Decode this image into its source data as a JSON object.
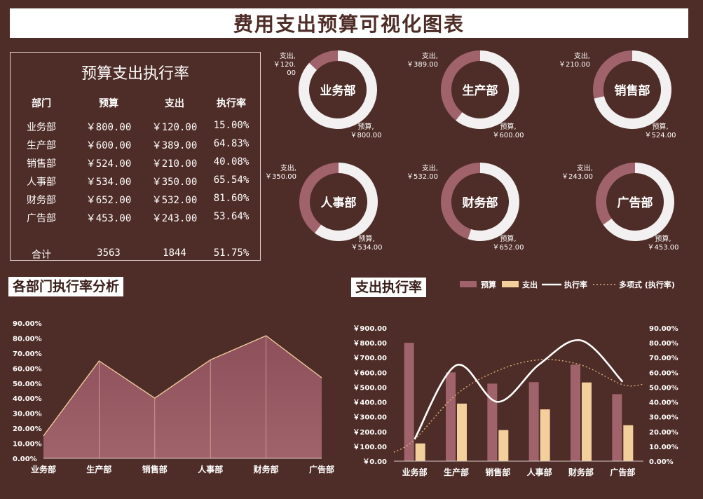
{
  "page_title": "费用支出预算可视化图表",
  "table": {
    "title": "预算支出执行率",
    "headers": [
      "部门",
      "预算",
      "支出",
      "执行率"
    ],
    "rows": [
      [
        "业务部",
        "￥800.00",
        "￥120.00",
        "15.00%"
      ],
      [
        "生产部",
        "￥600.00",
        "￥389.00",
        "64.83%"
      ],
      [
        "销售部",
        "￥524.00",
        "￥210.00",
        "40.08%"
      ],
      [
        "人事部",
        "￥534.00",
        "￥350.00",
        "65.54%"
      ],
      [
        "财务部",
        "￥652.00",
        "￥532.00",
        "81.60%"
      ],
      [
        "广告部",
        "￥453.00",
        "￥243.00",
        "53.64%"
      ]
    ],
    "total": [
      "合计",
      "3563",
      "1844",
      "51.75%"
    ]
  },
  "colors": {
    "background": "#4e2c27",
    "budget": "#a0636b",
    "spend": "#f3cf9c",
    "ring_rest": "#f2f0f1",
    "area_fill": "#a0636b",
    "area_line": "#f3cf9c"
  },
  "chart_data": [
    {
      "type": "pie",
      "variant": "donut",
      "charts": [
        {
          "center_label": "业务部",
          "slices": [
            {
              "name": "支出",
              "value": 120,
              "label": "支出,\n￥120.\n00"
            },
            {
              "name": "预算",
              "value": 800,
              "label": "预算,\n￥800.00"
            }
          ]
        },
        {
          "center_label": "生产部",
          "slices": [
            {
              "name": "支出",
              "value": 389,
              "label": "支出,\n￥389.00"
            },
            {
              "name": "预算",
              "value": 600,
              "label": "预算,\n￥600.00"
            }
          ]
        },
        {
          "center_label": "销售部",
          "slices": [
            {
              "name": "支出",
              "value": 210,
              "label": "支出,\n￥210.00"
            },
            {
              "name": "预算",
              "value": 524,
              "label": "预算,\n￥524.00"
            }
          ]
        },
        {
          "center_label": "人事部",
          "slices": [
            {
              "name": "支出",
              "value": 350,
              "label": "支出,\n￥350.00"
            },
            {
              "name": "预算",
              "value": 534,
              "label": "预算,\n￥534.00"
            }
          ]
        },
        {
          "center_label": "财务部",
          "slices": [
            {
              "name": "支出",
              "value": 532,
              "label": "支出,\n￥532.00"
            },
            {
              "name": "预算",
              "value": 652,
              "label": "预算,\n￥652.00"
            }
          ]
        },
        {
          "center_label": "广告部",
          "slices": [
            {
              "name": "支出",
              "value": 243,
              "label": "支出,\n￥243.00"
            },
            {
              "name": "预算",
              "value": 453,
              "label": "预算,\n￥453.00"
            }
          ]
        }
      ]
    },
    {
      "type": "area",
      "title": "各部门执行率分析",
      "categories": [
        "业务部",
        "生产部",
        "销售部",
        "人事部",
        "财务部",
        "广告部"
      ],
      "values": [
        15.0,
        64.83,
        40.08,
        65.54,
        81.6,
        53.64
      ],
      "ylim": [
        0,
        90
      ],
      "y_ticks": [
        "0.00%",
        "10.00%",
        "20.00%",
        "30.00%",
        "40.00%",
        "50.00%",
        "60.00%",
        "70.00%",
        "80.00%",
        "90.00%"
      ],
      "grid": false
    },
    {
      "type": "bar",
      "title": "支出执行率",
      "categories": [
        "业务部",
        "生产部",
        "销售部",
        "人事部",
        "财务部",
        "广告部"
      ],
      "series": [
        {
          "name": "预算",
          "type": "bar",
          "axis": "left",
          "values": [
            800,
            600,
            524,
            534,
            652,
            453
          ]
        },
        {
          "name": "支出",
          "type": "bar",
          "axis": "left",
          "values": [
            120,
            389,
            210,
            350,
            532,
            243
          ]
        },
        {
          "name": "执行率",
          "type": "line",
          "axis": "right",
          "values": [
            15.0,
            64.83,
            40.08,
            65.54,
            81.6,
            53.64
          ]
        },
        {
          "name": "多项式 (执行率)",
          "type": "trendline",
          "axis": "right",
          "values": [
            14.6,
            45.0,
            61.2,
            68.5,
            65.0,
            51.7
          ]
        }
      ],
      "ylim": [
        0,
        900
      ],
      "y2lim": [
        0,
        90
      ],
      "y_ticks": [
        "￥0.00",
        "￥100.00",
        "￥200.00",
        "￥300.00",
        "￥400.00",
        "￥500.00",
        "￥600.00",
        "￥700.00",
        "￥800.00",
        "￥900.00"
      ],
      "y2_ticks": [
        "0.00%",
        "10.00%",
        "20.00%",
        "30.00%",
        "40.00%",
        "50.00%",
        "60.00%",
        "70.00%",
        "80.00%",
        "90.00%"
      ],
      "legend_position": "top-right",
      "grid": false
    }
  ]
}
